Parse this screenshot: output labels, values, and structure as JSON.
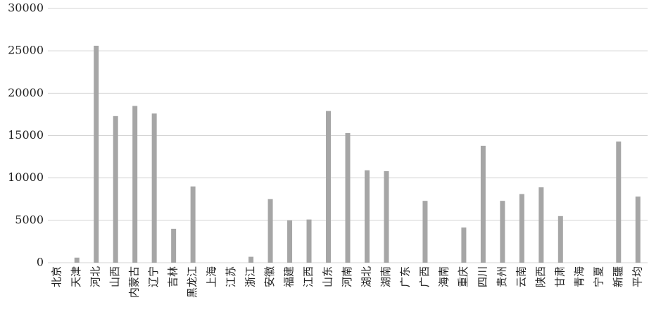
{
  "chart_data": {
    "type": "bar",
    "categories": [
      "北京",
      "天津",
      "河北",
      "山西",
      "内蒙古",
      "辽宁",
      "吉林",
      "黑龙江",
      "上海",
      "江苏",
      "浙江",
      "安徽",
      "福建",
      "江西",
      "山东",
      "河南",
      "湖北",
      "湖南",
      "广东",
      "广西",
      "海南",
      "重庆",
      "四川",
      "贵州",
      "云南",
      "陕西",
      "甘肃",
      "青海",
      "宁夏",
      "新疆",
      "平均"
    ],
    "values": [
      0,
      600,
      25600,
      17300,
      18500,
      17600,
      4000,
      9000,
      0,
      0,
      700,
      7500,
      5000,
      5100,
      17900,
      15300,
      10900,
      10800,
      0,
      7300,
      0,
      4150,
      13800,
      7300,
      8100,
      8900,
      5500,
      0,
      0,
      14300,
      7800
    ],
    "color": "#a6a6a6",
    "ylim": [
      0,
      30000
    ],
    "yticks": [
      0,
      5000,
      10000,
      15000,
      20000,
      25000,
      30000
    ],
    "grid": true
  }
}
